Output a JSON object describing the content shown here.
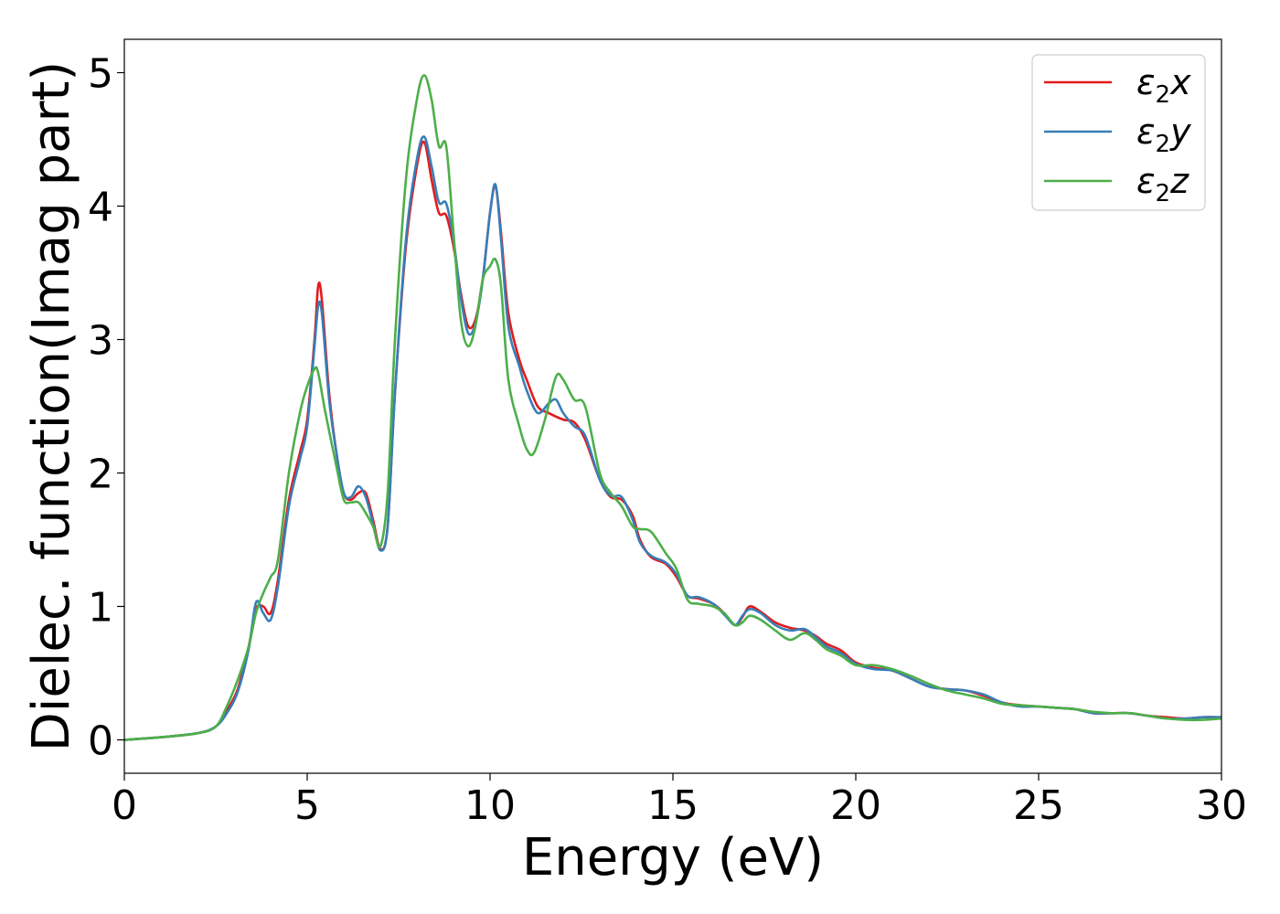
{
  "chart_data": {
    "type": "line",
    "title": "",
    "xlabel": "Energy (eV)",
    "ylabel": "Dielec. function(Imag part)",
    "xlim": [
      0,
      30
    ],
    "ylim": [
      -0.25,
      5.25
    ],
    "xticks": [
      "0",
      "5",
      "10",
      "15",
      "20",
      "25",
      "30"
    ],
    "yticks": [
      "0",
      "1",
      "2",
      "3",
      "4",
      "5"
    ],
    "grid": false,
    "legend_position": "top-right",
    "series": [
      {
        "name": "ε₂x",
        "legend_base": "ε",
        "legend_sub": "2",
        "legend_axis": "x",
        "color": "#e41a1c",
        "points": [
          [
            0,
            0
          ],
          [
            1,
            0.02
          ],
          [
            2,
            0.05
          ],
          [
            2.5,
            0.1
          ],
          [
            2.8,
            0.22
          ],
          [
            3.1,
            0.38
          ],
          [
            3.4,
            0.7
          ],
          [
            3.6,
            0.98
          ],
          [
            3.8,
            1.0
          ],
          [
            4.0,
            0.95
          ],
          [
            4.2,
            1.2
          ],
          [
            4.5,
            1.8
          ],
          [
            4.8,
            2.15
          ],
          [
            5.0,
            2.4
          ],
          [
            5.2,
            3.0
          ],
          [
            5.3,
            3.4
          ],
          [
            5.4,
            3.3
          ],
          [
            5.6,
            2.6
          ],
          [
            5.8,
            2.15
          ],
          [
            6.0,
            1.85
          ],
          [
            6.2,
            1.8
          ],
          [
            6.4,
            1.85
          ],
          [
            6.6,
            1.85
          ],
          [
            6.8,
            1.65
          ],
          [
            7.0,
            1.43
          ],
          [
            7.2,
            1.6
          ],
          [
            7.4,
            2.6
          ],
          [
            7.7,
            3.7
          ],
          [
            8.0,
            4.3
          ],
          [
            8.2,
            4.48
          ],
          [
            8.4,
            4.2
          ],
          [
            8.6,
            3.95
          ],
          [
            8.8,
            3.93
          ],
          [
            9.0,
            3.7
          ],
          [
            9.2,
            3.35
          ],
          [
            9.4,
            3.1
          ],
          [
            9.6,
            3.15
          ],
          [
            9.8,
            3.45
          ],
          [
            10.0,
            3.95
          ],
          [
            10.15,
            4.15
          ],
          [
            10.3,
            3.8
          ],
          [
            10.5,
            3.2
          ],
          [
            10.8,
            2.85
          ],
          [
            11.0,
            2.7
          ],
          [
            11.3,
            2.5
          ],
          [
            11.6,
            2.45
          ],
          [
            12.0,
            2.4
          ],
          [
            12.3,
            2.38
          ],
          [
            12.6,
            2.25
          ],
          [
            13.0,
            1.95
          ],
          [
            13.3,
            1.82
          ],
          [
            13.6,
            1.8
          ],
          [
            13.9,
            1.68
          ],
          [
            14.1,
            1.5
          ],
          [
            14.4,
            1.37
          ],
          [
            14.8,
            1.32
          ],
          [
            15.1,
            1.22
          ],
          [
            15.4,
            1.08
          ],
          [
            15.7,
            1.06
          ],
          [
            16.1,
            1.02
          ],
          [
            16.4,
            0.95
          ],
          [
            16.7,
            0.86
          ],
          [
            16.9,
            0.92
          ],
          [
            17.1,
            1.0
          ],
          [
            17.4,
            0.96
          ],
          [
            17.8,
            0.88
          ],
          [
            18.2,
            0.84
          ],
          [
            18.6,
            0.82
          ],
          [
            18.9,
            0.78
          ],
          [
            19.2,
            0.72
          ],
          [
            19.6,
            0.67
          ],
          [
            20.0,
            0.58
          ],
          [
            20.5,
            0.54
          ],
          [
            21.0,
            0.52
          ],
          [
            21.5,
            0.46
          ],
          [
            22.0,
            0.4
          ],
          [
            22.5,
            0.38
          ],
          [
            23.0,
            0.37
          ],
          [
            23.5,
            0.33
          ],
          [
            24.0,
            0.28
          ],
          [
            24.5,
            0.26
          ],
          [
            25.0,
            0.25
          ],
          [
            25.5,
            0.24
          ],
          [
            26.0,
            0.23
          ],
          [
            26.5,
            0.2
          ],
          [
            27.0,
            0.2
          ],
          [
            27.5,
            0.2
          ],
          [
            28.0,
            0.18
          ],
          [
            28.5,
            0.17
          ],
          [
            29.0,
            0.16
          ],
          [
            29.5,
            0.17
          ],
          [
            30.0,
            0.17
          ]
        ]
      },
      {
        "name": "ε₂y",
        "legend_base": "ε",
        "legend_sub": "2",
        "legend_axis": "y",
        "color": "#377eb8",
        "points": [
          [
            0,
            0
          ],
          [
            1,
            0.02
          ],
          [
            2,
            0.05
          ],
          [
            2.5,
            0.1
          ],
          [
            2.8,
            0.2
          ],
          [
            3.1,
            0.36
          ],
          [
            3.4,
            0.68
          ],
          [
            3.6,
            1.03
          ],
          [
            3.8,
            0.95
          ],
          [
            4.0,
            0.9
          ],
          [
            4.2,
            1.15
          ],
          [
            4.5,
            1.75
          ],
          [
            4.8,
            2.1
          ],
          [
            5.0,
            2.35
          ],
          [
            5.2,
            2.95
          ],
          [
            5.3,
            3.25
          ],
          [
            5.4,
            3.2
          ],
          [
            5.6,
            2.55
          ],
          [
            5.8,
            2.15
          ],
          [
            6.0,
            1.85
          ],
          [
            6.2,
            1.82
          ],
          [
            6.4,
            1.9
          ],
          [
            6.6,
            1.82
          ],
          [
            6.8,
            1.62
          ],
          [
            7.0,
            1.42
          ],
          [
            7.2,
            1.6
          ],
          [
            7.4,
            2.6
          ],
          [
            7.7,
            3.75
          ],
          [
            8.0,
            4.35
          ],
          [
            8.2,
            4.52
          ],
          [
            8.4,
            4.3
          ],
          [
            8.6,
            4.03
          ],
          [
            8.8,
            4.02
          ],
          [
            9.0,
            3.75
          ],
          [
            9.2,
            3.32
          ],
          [
            9.4,
            3.05
          ],
          [
            9.6,
            3.12
          ],
          [
            9.8,
            3.45
          ],
          [
            10.0,
            3.95
          ],
          [
            10.15,
            4.16
          ],
          [
            10.3,
            3.75
          ],
          [
            10.5,
            3.1
          ],
          [
            10.8,
            2.8
          ],
          [
            11.0,
            2.62
          ],
          [
            11.3,
            2.45
          ],
          [
            11.6,
            2.52
          ],
          [
            11.8,
            2.55
          ],
          [
            12.0,
            2.45
          ],
          [
            12.3,
            2.35
          ],
          [
            12.6,
            2.28
          ],
          [
            13.0,
            1.95
          ],
          [
            13.3,
            1.83
          ],
          [
            13.6,
            1.82
          ],
          [
            13.9,
            1.65
          ],
          [
            14.1,
            1.48
          ],
          [
            14.4,
            1.38
          ],
          [
            14.8,
            1.33
          ],
          [
            15.1,
            1.24
          ],
          [
            15.4,
            1.08
          ],
          [
            15.7,
            1.07
          ],
          [
            16.1,
            1.02
          ],
          [
            16.4,
            0.94
          ],
          [
            16.7,
            0.86
          ],
          [
            16.9,
            0.93
          ],
          [
            17.1,
            0.98
          ],
          [
            17.4,
            0.95
          ],
          [
            17.8,
            0.86
          ],
          [
            18.2,
            0.82
          ],
          [
            18.6,
            0.83
          ],
          [
            18.9,
            0.77
          ],
          [
            19.2,
            0.7
          ],
          [
            19.6,
            0.65
          ],
          [
            20.0,
            0.57
          ],
          [
            20.5,
            0.53
          ],
          [
            21.0,
            0.52
          ],
          [
            21.5,
            0.46
          ],
          [
            22.0,
            0.4
          ],
          [
            22.5,
            0.38
          ],
          [
            23.0,
            0.37
          ],
          [
            23.5,
            0.34
          ],
          [
            24.0,
            0.28
          ],
          [
            24.5,
            0.25
          ],
          [
            25.0,
            0.25
          ],
          [
            25.5,
            0.24
          ],
          [
            26.0,
            0.23
          ],
          [
            26.5,
            0.2
          ],
          [
            27.0,
            0.2
          ],
          [
            27.5,
            0.2
          ],
          [
            28.0,
            0.18
          ],
          [
            28.5,
            0.16
          ],
          [
            29.0,
            0.16
          ],
          [
            29.5,
            0.17
          ],
          [
            30.0,
            0.17
          ]
        ]
      },
      {
        "name": "ε₂z",
        "legend_base": "ε",
        "legend_sub": "2",
        "legend_axis": "z",
        "color": "#4daf4a",
        "points": [
          [
            0,
            0
          ],
          [
            1,
            0.02
          ],
          [
            2,
            0.05
          ],
          [
            2.5,
            0.1
          ],
          [
            2.8,
            0.25
          ],
          [
            3.1,
            0.45
          ],
          [
            3.4,
            0.7
          ],
          [
            3.6,
            0.95
          ],
          [
            3.8,
            1.1
          ],
          [
            4.0,
            1.22
          ],
          [
            4.2,
            1.35
          ],
          [
            4.5,
            2.0
          ],
          [
            4.8,
            2.45
          ],
          [
            5.0,
            2.65
          ],
          [
            5.2,
            2.78
          ],
          [
            5.3,
            2.75
          ],
          [
            5.5,
            2.45
          ],
          [
            5.8,
            2.05
          ],
          [
            6.0,
            1.8
          ],
          [
            6.2,
            1.78
          ],
          [
            6.4,
            1.78
          ],
          [
            6.6,
            1.7
          ],
          [
            6.8,
            1.6
          ],
          [
            7.0,
            1.45
          ],
          [
            7.2,
            1.85
          ],
          [
            7.4,
            3.0
          ],
          [
            7.7,
            4.2
          ],
          [
            8.0,
            4.8
          ],
          [
            8.2,
            4.98
          ],
          [
            8.4,
            4.8
          ],
          [
            8.6,
            4.45
          ],
          [
            8.8,
            4.45
          ],
          [
            9.0,
            3.8
          ],
          [
            9.2,
            3.15
          ],
          [
            9.4,
            2.95
          ],
          [
            9.6,
            3.1
          ],
          [
            9.8,
            3.45
          ],
          [
            10.0,
            3.55
          ],
          [
            10.15,
            3.6
          ],
          [
            10.3,
            3.4
          ],
          [
            10.5,
            2.7
          ],
          [
            10.8,
            2.35
          ],
          [
            11.0,
            2.18
          ],
          [
            11.2,
            2.15
          ],
          [
            11.5,
            2.4
          ],
          [
            11.8,
            2.72
          ],
          [
            12.0,
            2.7
          ],
          [
            12.3,
            2.55
          ],
          [
            12.6,
            2.5
          ],
          [
            13.0,
            2.0
          ],
          [
            13.3,
            1.85
          ],
          [
            13.6,
            1.75
          ],
          [
            13.9,
            1.6
          ],
          [
            14.1,
            1.58
          ],
          [
            14.4,
            1.56
          ],
          [
            14.8,
            1.4
          ],
          [
            15.1,
            1.28
          ],
          [
            15.4,
            1.05
          ],
          [
            15.7,
            1.02
          ],
          [
            16.1,
            1.0
          ],
          [
            16.4,
            0.95
          ],
          [
            16.7,
            0.86
          ],
          [
            16.9,
            0.88
          ],
          [
            17.1,
            0.93
          ],
          [
            17.4,
            0.9
          ],
          [
            17.8,
            0.82
          ],
          [
            18.2,
            0.75
          ],
          [
            18.6,
            0.8
          ],
          [
            18.9,
            0.75
          ],
          [
            19.2,
            0.68
          ],
          [
            19.6,
            0.63
          ],
          [
            20.0,
            0.56
          ],
          [
            20.5,
            0.56
          ],
          [
            21.0,
            0.53
          ],
          [
            21.5,
            0.48
          ],
          [
            22.0,
            0.42
          ],
          [
            22.5,
            0.37
          ],
          [
            23.0,
            0.34
          ],
          [
            23.5,
            0.31
          ],
          [
            24.0,
            0.27
          ],
          [
            24.5,
            0.26
          ],
          [
            25.0,
            0.25
          ],
          [
            25.5,
            0.24
          ],
          [
            26.0,
            0.23
          ],
          [
            26.5,
            0.21
          ],
          [
            27.0,
            0.2
          ],
          [
            27.5,
            0.2
          ],
          [
            28.0,
            0.18
          ],
          [
            28.5,
            0.16
          ],
          [
            29.0,
            0.15
          ],
          [
            29.5,
            0.15
          ],
          [
            30.0,
            0.16
          ]
        ]
      }
    ]
  }
}
